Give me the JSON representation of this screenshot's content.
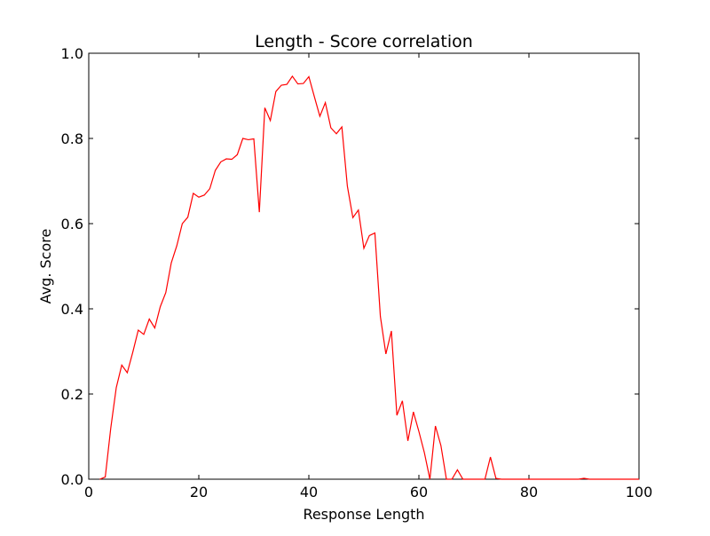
{
  "chart_data": {
    "type": "line",
    "title": "Length - Score correlation",
    "xlabel": "Response Length",
    "ylabel": "Avg. Score",
    "xlim": [
      0,
      100
    ],
    "ylim": [
      0.0,
      1.0
    ],
    "x_ticks": [
      "0",
      "20",
      "40",
      "60",
      "80",
      "100"
    ],
    "y_ticks": [
      "0.0",
      "0.2",
      "0.4",
      "0.6",
      "0.8",
      "1.0"
    ],
    "grid": false,
    "series": [
      {
        "color": "#ff0000",
        "x": [
          2,
          3,
          4,
          5,
          6,
          7,
          8,
          9,
          10,
          11,
          12,
          13,
          14,
          15,
          16,
          17,
          18,
          19,
          20,
          21,
          22,
          23,
          24,
          25,
          26,
          27,
          28,
          29,
          30,
          31,
          32,
          33,
          34,
          35,
          36,
          37,
          38,
          39,
          40,
          41,
          42,
          43,
          44,
          45,
          46,
          47,
          48,
          49,
          50,
          51,
          52,
          53,
          54,
          55,
          56,
          57,
          58,
          59,
          60,
          61,
          62,
          63,
          64,
          65,
          66,
          67,
          68,
          69,
          70,
          71,
          72,
          73,
          74,
          75,
          76,
          77,
          78,
          79,
          80,
          81,
          82,
          83,
          84,
          85,
          86,
          87,
          88,
          89,
          90,
          91,
          92,
          93,
          94,
          95,
          96,
          97,
          98,
          99,
          100
        ],
        "y": [
          0.0,
          0.005,
          0.12,
          0.215,
          0.268,
          0.25,
          0.298,
          0.35,
          0.34,
          0.376,
          0.355,
          0.405,
          0.438,
          0.508,
          0.548,
          0.6,
          0.615,
          0.671,
          0.662,
          0.667,
          0.682,
          0.725,
          0.745,
          0.752,
          0.751,
          0.762,
          0.8,
          0.797,
          0.799,
          0.627,
          0.872,
          0.842,
          0.91,
          0.925,
          0.927,
          0.946,
          0.928,
          0.929,
          0.945,
          0.898,
          0.852,
          0.884,
          0.825,
          0.811,
          0.827,
          0.688,
          0.614,
          0.632,
          0.542,
          0.572,
          0.578,
          0.382,
          0.294,
          0.348,
          0.15,
          0.184,
          0.09,
          0.158,
          0.112,
          0.062,
          0.0,
          0.125,
          0.079,
          0.0,
          0.0,
          0.022,
          0.0,
          0.0,
          0.0,
          0.0,
          0.0,
          0.052,
          0.002,
          0.0,
          0.0,
          0.0,
          0.0,
          0.0,
          0.0,
          0.0,
          0.0,
          0.0,
          0.0,
          0.0,
          0.0,
          0.0,
          0.0,
          0.0,
          0.002,
          0.0,
          0.0,
          0.0,
          0.0,
          0.0,
          0.0,
          0.0,
          0.0,
          0.0,
          0.0
        ]
      }
    ]
  }
}
